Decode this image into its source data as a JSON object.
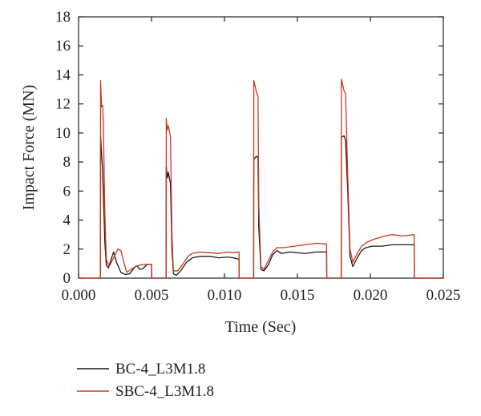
{
  "chart_data": {
    "type": "line",
    "title": "",
    "xlabel": "Time (Sec)",
    "ylabel": "Impact Force (MN)",
    "xlim": [
      0,
      0.025
    ],
    "ylim": [
      0,
      18
    ],
    "xticks": [
      "0.000",
      "0.005",
      "0.010",
      "0.015",
      "0.020",
      "0.025"
    ],
    "yticks": [
      "0",
      "2",
      "4",
      "6",
      "8",
      "10",
      "12",
      "14",
      "16",
      "18"
    ],
    "grid": false,
    "legend_placement": "bottom-left",
    "series": [
      {
        "name": "BC-4_L3M1.8",
        "color": "#1a1a1a",
        "points": [
          [
            0,
            0
          ],
          [
            0.0015,
            0
          ],
          [
            0.00151,
            9.8
          ],
          [
            0.00158,
            8.5
          ],
          [
            0.00165,
            7.4
          ],
          [
            0.0018,
            2.5
          ],
          [
            0.0019,
            0.9
          ],
          [
            0.00205,
            0.7
          ],
          [
            0.0022,
            1.2
          ],
          [
            0.0024,
            1.8
          ],
          [
            0.0026,
            1.1
          ],
          [
            0.0029,
            0.4
          ],
          [
            0.0032,
            0.25
          ],
          [
            0.0035,
            0.3
          ],
          [
            0.0038,
            0.7
          ],
          [
            0.004,
            0.85
          ],
          [
            0.0042,
            0.6
          ],
          [
            0.0044,
            0.65
          ],
          [
            0.0047,
            0.95
          ],
          [
            0.005,
            0.95
          ],
          [
            0.00501,
            0
          ],
          [
            0.006,
            0
          ],
          [
            0.00601,
            7.7
          ],
          [
            0.00608,
            6.9
          ],
          [
            0.00615,
            7.3
          ],
          [
            0.0063,
            6.5
          ],
          [
            0.0064,
            2.0
          ],
          [
            0.0065,
            0.3
          ],
          [
            0.0067,
            0.2
          ],
          [
            0.007,
            0.5
          ],
          [
            0.0074,
            1.1
          ],
          [
            0.0078,
            1.4
          ],
          [
            0.0083,
            1.5
          ],
          [
            0.009,
            1.5
          ],
          [
            0.0096,
            1.4
          ],
          [
            0.0102,
            1.45
          ],
          [
            0.0106,
            1.4
          ],
          [
            0.011,
            1.3
          ],
          [
            0.01101,
            0
          ],
          [
            0.012,
            0
          ],
          [
            0.01201,
            8.2
          ],
          [
            0.0122,
            8.4
          ],
          [
            0.0123,
            8.3
          ],
          [
            0.01235,
            3.5
          ],
          [
            0.0125,
            0.6
          ],
          [
            0.0127,
            0.5
          ],
          [
            0.013,
            0.9
          ],
          [
            0.0133,
            1.6
          ],
          [
            0.0136,
            1.9
          ],
          [
            0.0139,
            1.7
          ],
          [
            0.0145,
            1.8
          ],
          [
            0.0155,
            1.7
          ],
          [
            0.0163,
            1.8
          ],
          [
            0.017,
            1.8
          ],
          [
            0.01701,
            0
          ],
          [
            0.018,
            0
          ],
          [
            0.01801,
            9.7
          ],
          [
            0.0182,
            9.8
          ],
          [
            0.0183,
            9.5
          ],
          [
            0.01845,
            6.0
          ],
          [
            0.0186,
            1.5
          ],
          [
            0.0188,
            0.8
          ],
          [
            0.0191,
            1.4
          ],
          [
            0.0194,
            1.9
          ],
          [
            0.0197,
            2.1
          ],
          [
            0.0201,
            2.2
          ],
          [
            0.0208,
            2.2
          ],
          [
            0.0215,
            2.3
          ],
          [
            0.0223,
            2.3
          ],
          [
            0.023,
            2.3
          ],
          [
            0.02301,
            0
          ],
          [
            0.025,
            0
          ]
        ]
      },
      {
        "name": "SBC-4_L3M1.8",
        "color": "#c8391a",
        "points": [
          [
            0,
            0
          ],
          [
            0.0015,
            0
          ],
          [
            0.00151,
            13.6
          ],
          [
            0.00158,
            11.8
          ],
          [
            0.00165,
            11.9
          ],
          [
            0.0017,
            10.6
          ],
          [
            0.0018,
            4.5
          ],
          [
            0.0019,
            1.3
          ],
          [
            0.0021,
            0.8
          ],
          [
            0.0023,
            1.2
          ],
          [
            0.0025,
            1.6
          ],
          [
            0.0027,
            2.0
          ],
          [
            0.0029,
            1.9
          ],
          [
            0.0031,
            1.1
          ],
          [
            0.0033,
            0.4
          ],
          [
            0.0036,
            0.6
          ],
          [
            0.0039,
            0.8
          ],
          [
            0.0042,
            0.9
          ],
          [
            0.0046,
            0.95
          ],
          [
            0.005,
            0.95
          ],
          [
            0.00501,
            0
          ],
          [
            0.006,
            0
          ],
          [
            0.00601,
            11.0
          ],
          [
            0.00608,
            10.2
          ],
          [
            0.00615,
            10.5
          ],
          [
            0.0063,
            9.8
          ],
          [
            0.0064,
            3.0
          ],
          [
            0.0065,
            0.5
          ],
          [
            0.0068,
            0.5
          ],
          [
            0.0071,
            0.9
          ],
          [
            0.0075,
            1.5
          ],
          [
            0.0078,
            1.7
          ],
          [
            0.0083,
            1.8
          ],
          [
            0.009,
            1.75
          ],
          [
            0.0096,
            1.7
          ],
          [
            0.0102,
            1.8
          ],
          [
            0.0106,
            1.75
          ],
          [
            0.011,
            1.8
          ],
          [
            0.01101,
            0
          ],
          [
            0.012,
            0
          ],
          [
            0.01201,
            13.6
          ],
          [
            0.0122,
            12.8
          ],
          [
            0.0123,
            12.5
          ],
          [
            0.01235,
            5.0
          ],
          [
            0.0125,
            0.8
          ],
          [
            0.0127,
            0.6
          ],
          [
            0.013,
            1.2
          ],
          [
            0.0133,
            1.8
          ],
          [
            0.0136,
            2.1
          ],
          [
            0.014,
            2.1
          ],
          [
            0.0148,
            2.2
          ],
          [
            0.0155,
            2.3
          ],
          [
            0.0163,
            2.4
          ],
          [
            0.017,
            2.35
          ],
          [
            0.01701,
            0
          ],
          [
            0.018,
            0
          ],
          [
            0.01801,
            13.7
          ],
          [
            0.0182,
            12.9
          ],
          [
            0.0183,
            12.7
          ],
          [
            0.01845,
            7.0
          ],
          [
            0.0186,
            2.0
          ],
          [
            0.0188,
            1.1
          ],
          [
            0.0191,
            1.7
          ],
          [
            0.0194,
            2.2
          ],
          [
            0.0198,
            2.5
          ],
          [
            0.0203,
            2.7
          ],
          [
            0.021,
            2.9
          ],
          [
            0.0215,
            3.0
          ],
          [
            0.0222,
            2.9
          ],
          [
            0.023,
            3.0
          ],
          [
            0.02301,
            0
          ],
          [
            0.025,
            0
          ]
        ]
      }
    ]
  }
}
